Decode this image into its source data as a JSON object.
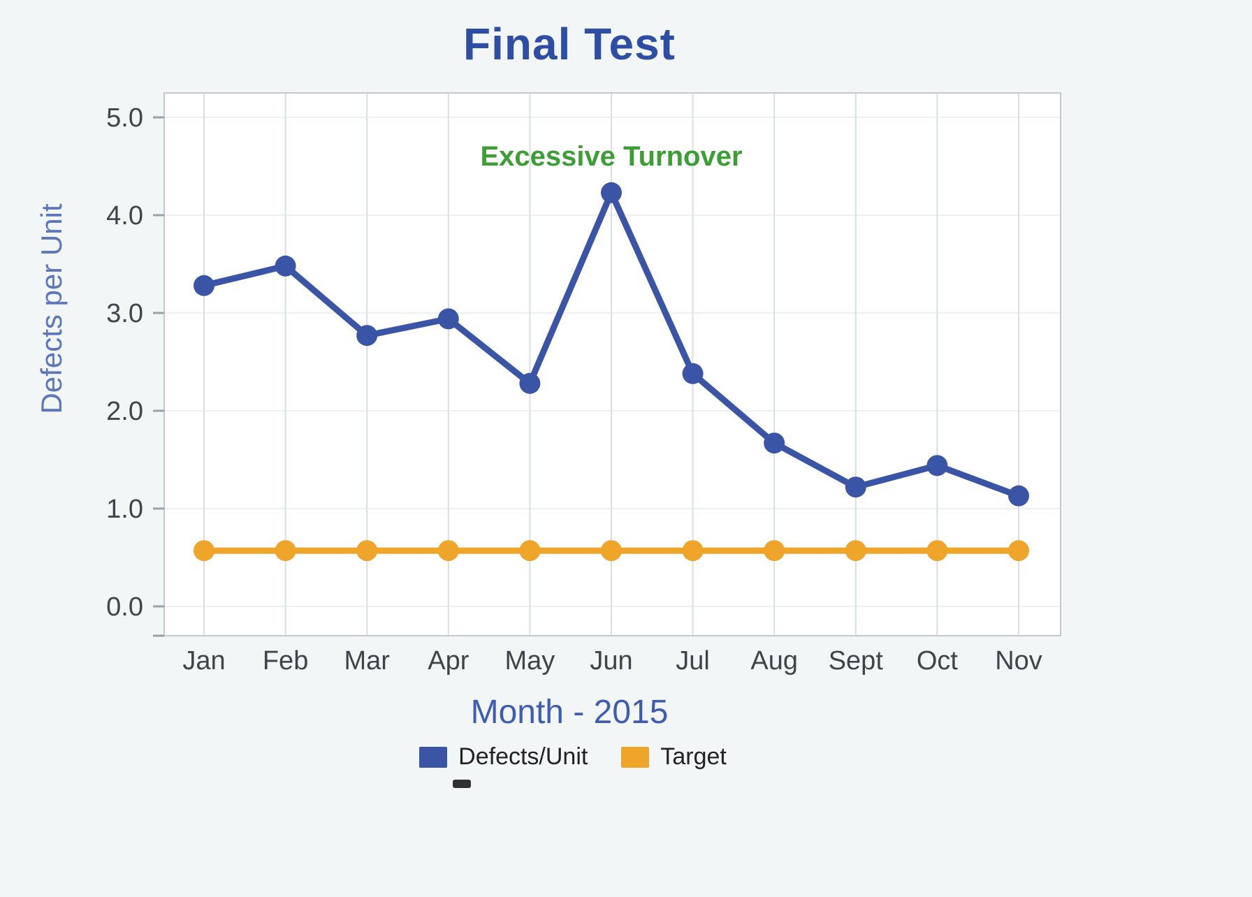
{
  "chart_data": {
    "type": "line",
    "title": "Final Test",
    "ylabel": "Defects per Unit",
    "xlabel": "Month - 2015",
    "categories": [
      "Jan",
      "Feb",
      "Mar",
      "Apr",
      "May",
      "Jun",
      "Jul",
      "Aug",
      "Sept",
      "Oct",
      "Nov"
    ],
    "series": [
      {
        "name": "Defects/Unit",
        "color": "#3a55a5",
        "values": [
          3.28,
          3.48,
          2.77,
          2.94,
          2.28,
          4.23,
          2.38,
          1.67,
          1.22,
          1.44,
          1.13
        ]
      },
      {
        "name": "Target",
        "color": "#efa42a",
        "values": [
          0.57,
          0.57,
          0.57,
          0.57,
          0.57,
          0.57,
          0.57,
          0.57,
          0.57,
          0.57,
          0.57
        ]
      }
    ],
    "ylim": [
      0,
      5.25
    ],
    "yticks": [
      "0.0",
      "1.0",
      "2.0",
      "3.0",
      "4.0",
      "5.0"
    ],
    "annotation": {
      "text": "Excessive Turnover",
      "color": "#3c9e35",
      "x_index": 5,
      "y_value": 4.6
    },
    "grid": "vertical",
    "legend_position": "bottom",
    "colors": {
      "title": "#2e4ea6",
      "x_axis_label": "#3e5cb0",
      "y_axis_label": "#5b76ba",
      "tick_text": "#3f4449",
      "gridline": "#d9dee1",
      "plot_border": "#c3c9cd",
      "plot_background": "#ffffff"
    }
  }
}
